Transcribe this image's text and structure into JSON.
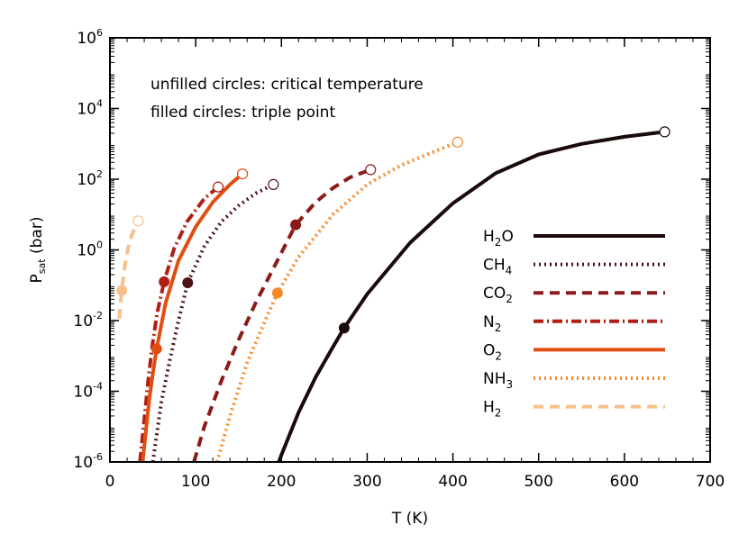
{
  "chart_data": {
    "type": "line",
    "xlabel": "T (K)",
    "ylabel_main": "P",
    "ylabel_sub": "sat",
    "ylabel_unit": " (bar)",
    "xlim": [
      0,
      700
    ],
    "ylim_log10": [
      -6,
      6
    ],
    "y_scale": "log",
    "x_ticks": [
      0,
      100,
      200,
      300,
      400,
      500,
      600,
      700
    ],
    "y_ticks_exp": [
      -6,
      -4,
      -2,
      0,
      2,
      4,
      6
    ],
    "y_tick_base": "10",
    "grid": false,
    "legend_position": "right",
    "annotations": [
      "unfilled circles: critical temperature",
      "filled circles: triple point"
    ],
    "series": [
      {
        "name_main": "H",
        "name_sub": "2",
        "name_tail": "O",
        "color": "#1a0a0a",
        "dash": "solid",
        "x": [
          197,
          200,
          220,
          240,
          260,
          273.16,
          300,
          350,
          400,
          450,
          500,
          550,
          600,
          647
        ],
        "logP": [
          -6.0,
          -5.8,
          -4.6,
          -3.6,
          -2.75,
          -2.21,
          -1.25,
          0.2,
          1.32,
          2.17,
          2.7,
          3.0,
          3.2,
          3.34
        ],
        "triple_point": [
          273.16,
          -2.21
        ],
        "critical_point": [
          647,
          3.34
        ]
      },
      {
        "name_main": "CH",
        "name_sub": "4",
        "name_tail": "",
        "color": "#4a1418",
        "dash": "dot",
        "x": [
          50,
          60,
          70,
          80,
          90.7,
          110,
          130,
          150,
          170,
          190.6
        ],
        "logP": [
          -6.0,
          -4.3,
          -3.1,
          -2.0,
          -0.93,
          0.1,
          0.8,
          1.25,
          1.6,
          1.85
        ],
        "triple_point": [
          90.7,
          -0.93
        ],
        "critical_point": [
          190.6,
          1.85
        ]
      },
      {
        "name_main": "CO",
        "name_sub": "2",
        "name_tail": "",
        "color": "#8b1a1a",
        "dash": "dash",
        "x": [
          98,
          110,
          130,
          150,
          170,
          190,
          216.6,
          240,
          260,
          280,
          304
        ],
        "logP": [
          -6.0,
          -5.0,
          -3.7,
          -2.55,
          -1.5,
          -0.55,
          0.71,
          1.35,
          1.75,
          2.05,
          2.27
        ],
        "triple_point": [
          216.6,
          0.71
        ],
        "critical_point": [
          304,
          2.27
        ]
      },
      {
        "name_main": "N",
        "name_sub": "2",
        "name_tail": "",
        "color": "#b01e14",
        "dash": "dashdot",
        "x": [
          35,
          40,
          45,
          50,
          55,
          63.2,
          75,
          90,
          110,
          126.2
        ],
        "logP": [
          -6.0,
          -4.8,
          -3.6,
          -2.6,
          -1.8,
          -0.9,
          0.05,
          0.8,
          1.45,
          1.78
        ],
        "triple_point": [
          63.2,
          -0.9
        ],
        "critical_point": [
          126.2,
          1.78
        ]
      },
      {
        "name_main": "O",
        "name_sub": "2",
        "name_tail": "",
        "color": "#e04e12",
        "dash": "solid",
        "x": [
          38,
          42,
          46,
          50,
          54.4,
          65,
          80,
          100,
          120,
          140,
          154.6
        ],
        "logP": [
          -6.0,
          -5.1,
          -4.2,
          -3.5,
          -2.8,
          -1.5,
          -0.3,
          0.65,
          1.35,
          1.85,
          2.15
        ],
        "triple_point": [
          54.4,
          -2.8
        ],
        "critical_point": [
          154.6,
          2.15
        ]
      },
      {
        "name_main": "NH",
        "name_sub": "3",
        "name_tail": "",
        "color": "#f58a2a",
        "dash": "dot",
        "x": [
          125,
          140,
          160,
          180,
          195.4,
          220,
          260,
          300,
          340,
          380,
          405.5
        ],
        "logP": [
          -6.0,
          -4.7,
          -3.2,
          -2.05,
          -1.22,
          -0.2,
          1.0,
          1.85,
          2.4,
          2.8,
          3.05
        ],
        "triple_point": [
          195.4,
          -1.22
        ],
        "critical_point": [
          405.5,
          3.05
        ]
      },
      {
        "name_main": "H",
        "name_sub": "2",
        "name_tail": "",
        "color": "#f8c08a",
        "dash": "dash",
        "x": [
          11,
          12,
          13.8,
          17,
          21,
          26,
          33
        ],
        "logP": [
          -1.95,
          -1.6,
          -1.15,
          -0.5,
          0.05,
          0.45,
          0.82
        ],
        "triple_point": [
          13.8,
          -1.15
        ],
        "critical_point": [
          33,
          0.82
        ]
      }
    ]
  }
}
